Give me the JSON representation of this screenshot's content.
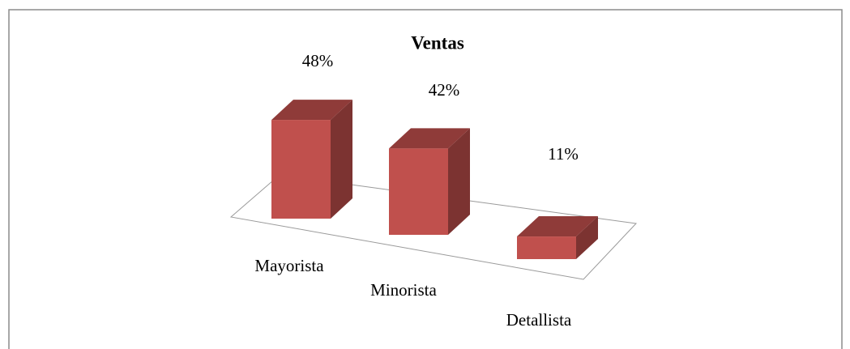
{
  "chart_data": {
    "type": "bar3d",
    "title": "Ventas",
    "categories": [
      "Mayorista",
      "Minorista",
      "Detallista"
    ],
    "values": [
      48,
      42,
      11
    ],
    "value_labels": [
      "48%",
      "42%",
      "11%"
    ],
    "color": "#c0504d"
  }
}
